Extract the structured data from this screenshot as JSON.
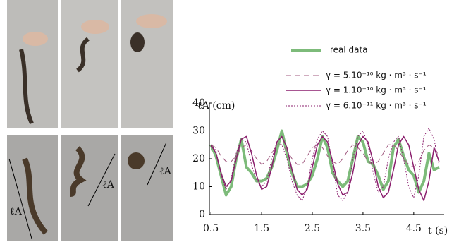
{
  "chart_data": {
    "type": "line",
    "xlabel": "t (s)",
    "ylabel": "ℓA (cm)",
    "xlim": [
      0.47,
      5.1
    ],
    "ylim": [
      0,
      40
    ],
    "xticks": [
      0.5,
      1.5,
      2.5,
      3.5,
      4.5
    ],
    "yticks": [
      0,
      10,
      20,
      30,
      40
    ],
    "x": [
      0.5,
      0.6,
      0.7,
      0.8,
      0.9,
      1.0,
      1.1,
      1.2,
      1.3,
      1.4,
      1.5,
      1.6,
      1.7,
      1.8,
      1.9,
      2.0,
      2.1,
      2.2,
      2.3,
      2.4,
      2.5,
      2.6,
      2.7,
      2.8,
      2.9,
      3.0,
      3.1,
      3.2,
      3.3,
      3.4,
      3.5,
      3.6,
      3.7,
      3.8,
      3.9,
      4.0,
      4.1,
      4.2,
      4.3,
      4.4,
      4.5,
      4.6,
      4.7,
      4.8,
      4.9,
      5.0
    ],
    "series": [
      {
        "name": "real data",
        "color": "#7dbb7a",
        "width": 4,
        "dash": "none",
        "values": [
          25,
          21,
          14,
          7,
          10,
          20,
          27,
          17,
          15,
          12,
          12,
          13,
          17,
          23,
          30,
          22,
          15,
          10,
          10,
          11,
          14,
          20,
          28,
          24,
          15,
          12,
          10,
          12,
          20,
          28,
          26,
          19,
          18,
          14,
          9,
          12,
          24,
          27,
          21,
          16,
          14,
          8,
          12,
          22,
          16,
          17
        ]
      },
      {
        "name": "γ = 5.10⁻¹⁰ kg · m³ · s⁻¹",
        "color": "#a0587f",
        "width": 1,
        "dash": "8 5",
        "values": [
          25,
          24,
          21,
          19,
          19,
          21,
          24,
          25,
          23,
          20,
          18,
          19,
          22,
          25,
          25,
          23,
          20,
          18,
          18,
          21,
          24,
          25,
          24,
          21,
          19,
          18,
          20,
          23,
          25,
          24,
          22,
          19,
          18,
          19,
          22,
          25,
          25,
          23,
          20,
          18,
          17,
          19,
          23,
          25,
          24,
          21
        ]
      },
      {
        "name": "γ = 1.10⁻¹⁰ kg · m³ · s⁻¹",
        "color": "#8b1f6e",
        "width": 1.5,
        "dash": "none",
        "values": [
          25,
          22,
          15,
          10,
          12,
          20,
          27,
          28,
          22,
          14,
          9,
          10,
          17,
          26,
          28,
          24,
          16,
          9,
          7,
          9,
          17,
          25,
          28,
          26,
          19,
          11,
          7,
          8,
          15,
          25,
          28,
          26,
          19,
          10,
          6,
          8,
          16,
          25,
          28,
          25,
          17,
          9,
          5,
          12,
          24,
          19
        ]
      },
      {
        "name": "γ = 6.10⁻¹¹ kg · m³ · s⁻¹",
        "color": "#8b1f6e",
        "width": 1,
        "dash": "2 2",
        "values": [
          25,
          23,
          14,
          9,
          13,
          22,
          27,
          26,
          18,
          12,
          10,
          12,
          20,
          26,
          25,
          20,
          12,
          7,
          5,
          10,
          20,
          27,
          30,
          28,
          18,
          7,
          5,
          8,
          20,
          28,
          30,
          25,
          15,
          8,
          10,
          20,
          26,
          28,
          20,
          10,
          6,
          14,
          28,
          31,
          27,
          18
        ]
      }
    ]
  },
  "photo_labels": [
    "ℓA",
    "ℓA",
    "ℓA"
  ]
}
